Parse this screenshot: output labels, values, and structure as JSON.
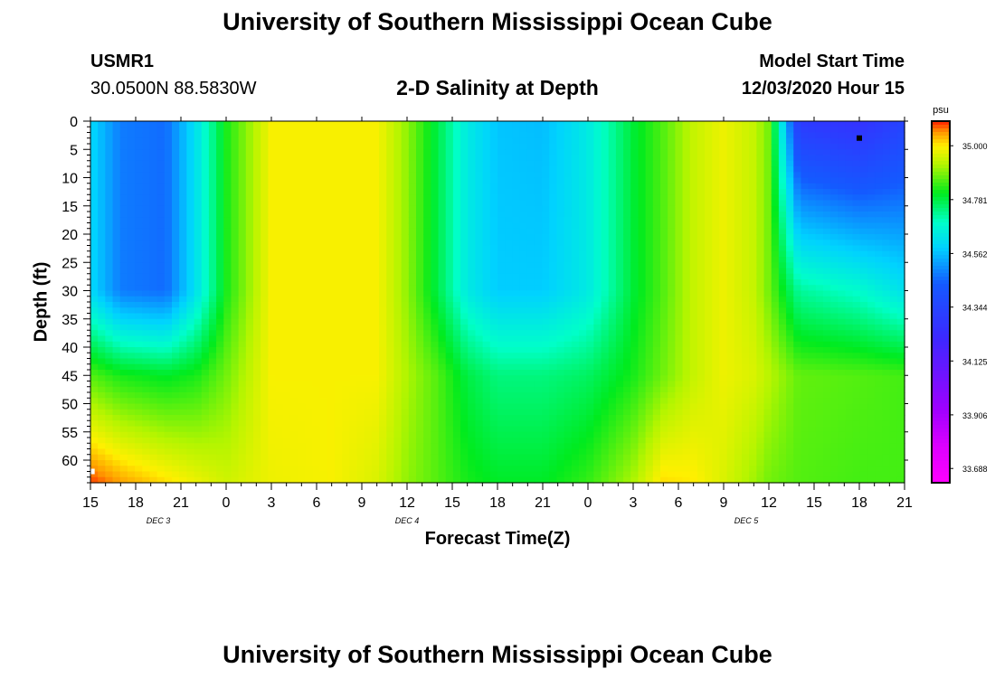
{
  "page": {
    "title": "University of Southern Mississippi Ocean Cube",
    "footer_title": "University of Southern Mississippi Ocean Cube",
    "station_id": "USMR1",
    "station_coords": "30.0500N 88.5830W",
    "plot_title": "2-D Salinity at Depth",
    "model_start_label": "Model Start Time",
    "model_start_value": "12/03/2020 Hour 15"
  },
  "chart_data": {
    "type": "heatmap",
    "title": "2-D Salinity at Depth",
    "xlabel": "Forecast Time(Z)",
    "ylabel": "Depth (ft)",
    "x_tick_labels": [
      "15",
      "18",
      "21",
      "0",
      "3",
      "6",
      "9",
      "12",
      "15",
      "18",
      "21",
      "0",
      "3",
      "6",
      "9",
      "12",
      "15",
      "18",
      "21"
    ],
    "x_hours_from_start": [
      0,
      54
    ],
    "date_labels": [
      {
        "label": "DEC 3",
        "hour_offset": 4.5
      },
      {
        "label": "DEC 4",
        "hour_offset": 21
      },
      {
        "label": "DEC 5",
        "hour_offset": 43.5
      }
    ],
    "y_ticks": [
      0,
      5,
      10,
      15,
      20,
      25,
      30,
      35,
      40,
      45,
      50,
      55,
      60
    ],
    "ylim": [
      0,
      64
    ],
    "colorbar": {
      "unit": "psu",
      "ticks": [
        "35.000",
        "34.781",
        "34.562",
        "34.344",
        "34.125",
        "33.906",
        "33.688"
      ],
      "range": [
        33.63,
        35.1
      ]
    },
    "markers": [
      {
        "hour_offset": 51,
        "depth": 3,
        "color": "#000000"
      },
      {
        "hour_offset": 0.1,
        "depth": 62,
        "color": "#ffffff"
      }
    ],
    "salinity_profiles": {
      "description": "Approximate salinity (psu) at depth 0 / 30 / 45 / 64 ft for forecast hour offsets",
      "hours": [
        0,
        2,
        5,
        7,
        9,
        12,
        16,
        19,
        21,
        23,
        25,
        27,
        30,
        33,
        36,
        38,
        40,
        42,
        44,
        45,
        47,
        51,
        54
      ],
      "d0": [
        34.6,
        34.48,
        34.46,
        34.62,
        34.82,
        34.99,
        34.99,
        34.99,
        34.9,
        34.78,
        34.64,
        34.57,
        34.56,
        34.64,
        34.79,
        34.86,
        34.94,
        34.98,
        34.94,
        34.88,
        34.3,
        34.26,
        34.34
      ],
      "d30": [
        34.6,
        34.48,
        34.46,
        34.62,
        34.82,
        34.99,
        34.99,
        34.99,
        34.9,
        34.78,
        34.64,
        34.58,
        34.58,
        34.64,
        34.79,
        34.86,
        34.94,
        34.98,
        34.94,
        34.88,
        34.72,
        34.68,
        34.62
      ],
      "d45": [
        34.86,
        34.82,
        34.8,
        34.82,
        34.88,
        34.99,
        34.99,
        34.99,
        34.92,
        34.86,
        34.78,
        34.74,
        34.74,
        34.76,
        34.82,
        34.88,
        34.94,
        34.98,
        34.96,
        34.93,
        34.87,
        34.86,
        34.85
      ],
      "d64": [
        35.09,
        35.05,
        35.01,
        34.98,
        34.95,
        34.98,
        34.99,
        34.96,
        34.9,
        34.86,
        34.82,
        34.8,
        34.8,
        34.84,
        34.92,
        35.01,
        35.0,
        34.96,
        34.91,
        34.88,
        34.86,
        34.85,
        34.85
      ]
    }
  }
}
